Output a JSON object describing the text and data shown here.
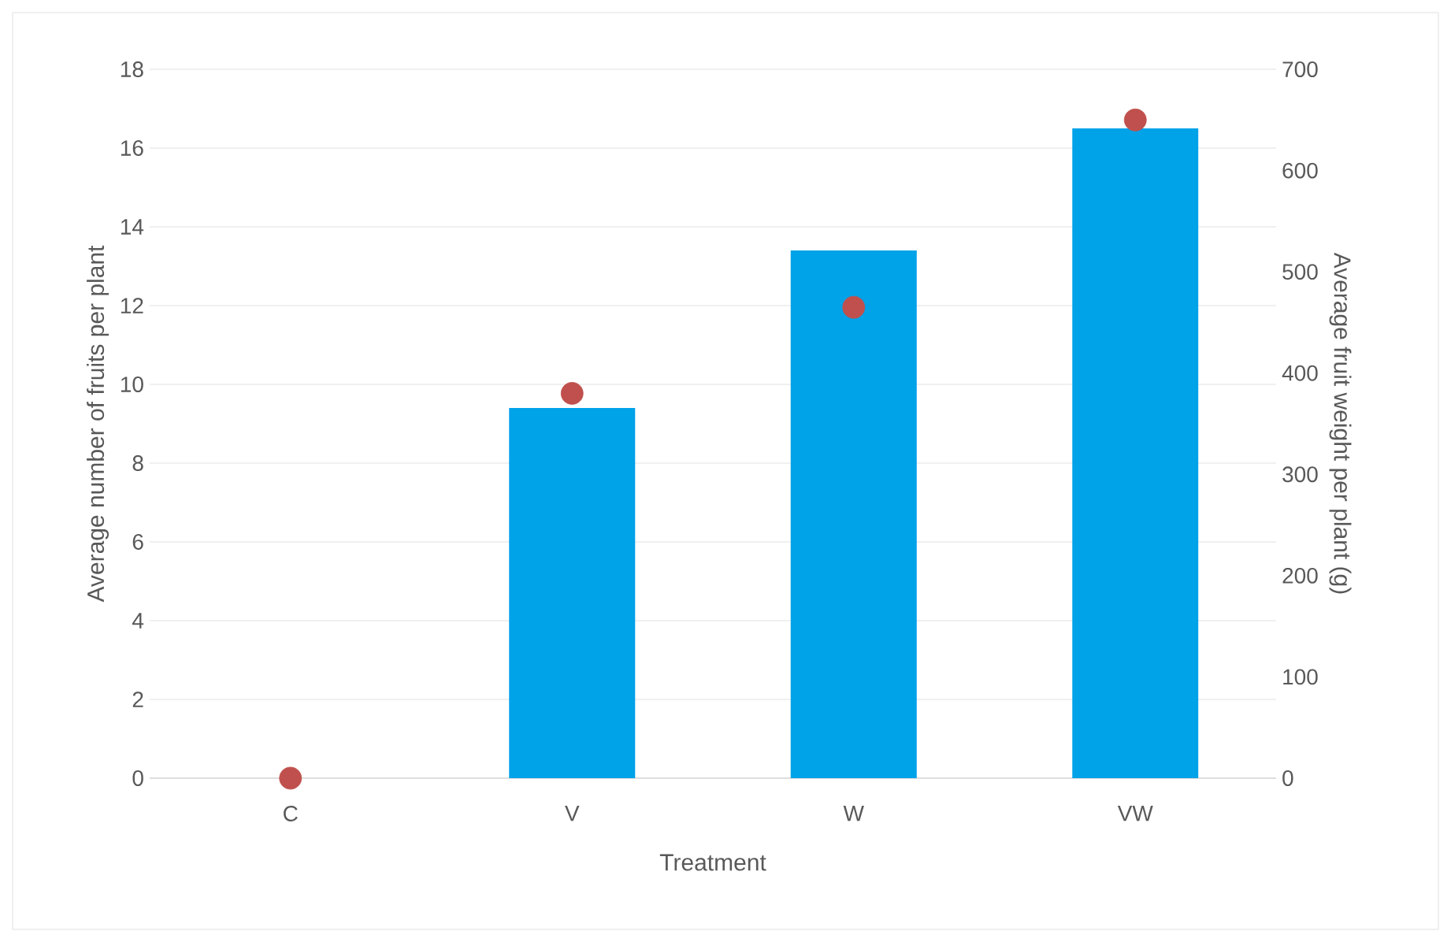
{
  "chart_data": {
    "type": "bar",
    "xlabel": "Treatment",
    "ylabel": "Average number of fruits per plant",
    "y2label": "Average fruit weight per plant (g)",
    "categories": [
      "C",
      "V",
      "W",
      "VW"
    ],
    "series": [
      {
        "color": "#00a2e8",
        "values": [
          0,
          9.4,
          13.4,
          16.5
        ]
      },
      {
        "type": "scatter",
        "axis": "y2",
        "color": "#c0504d",
        "values": [
          0,
          380,
          465,
          650
        ]
      }
    ],
    "ylim": [
      0,
      18
    ],
    "yticks": [
      0,
      2,
      4,
      6,
      8,
      10,
      12,
      14,
      16,
      18
    ],
    "y2lim": [
      0,
      700
    ],
    "y2ticks": [
      0,
      100,
      200,
      300,
      400,
      500,
      600,
      700
    ],
    "grid": "y"
  }
}
